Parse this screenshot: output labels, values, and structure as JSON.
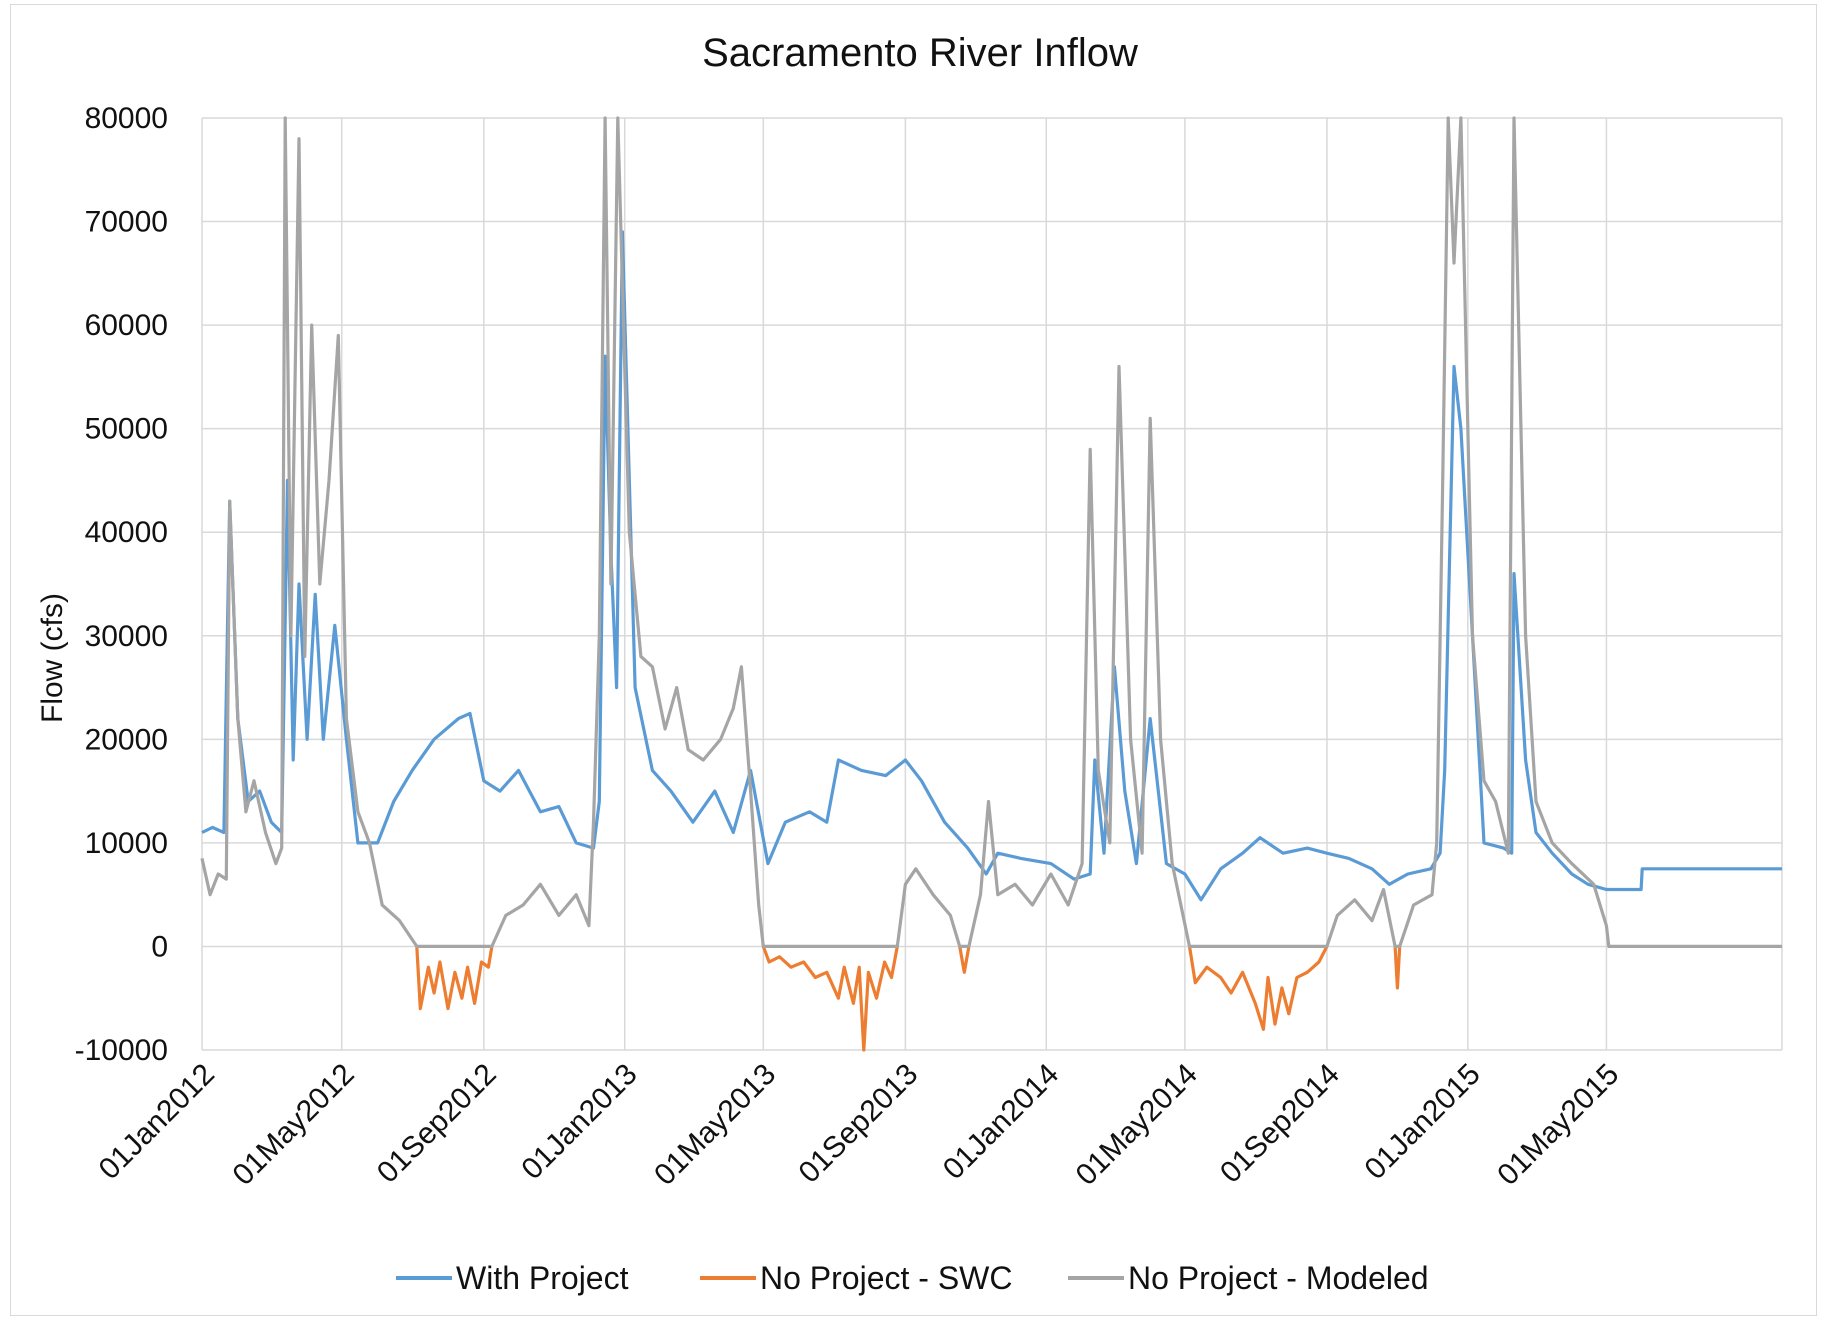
{
  "chart_data": {
    "type": "line",
    "title": "Sacramento River Inflow",
    "xlabel": "",
    "ylabel": "Flow (cfs)",
    "ylim": [
      -10000,
      80000
    ],
    "yticks": [
      "80000",
      "70000",
      "60000",
      "50000",
      "40000",
      "30000",
      "20000",
      "10000",
      "0",
      "-10000"
    ],
    "xlim": [
      "2012-01-01",
      "2015-09-30"
    ],
    "xticks": [
      "01Jan2012",
      "01May2012",
      "01Sep2012",
      "01Jan2013",
      "01May2013",
      "01Sep2013",
      "01Jan2014",
      "01May2014",
      "01Sep2014",
      "01Jan2015",
      "01May2015"
    ],
    "grid": true,
    "legend_position": "bottom",
    "series": [
      {
        "name": "With Project",
        "color": "#5b9bd5",
        "points": [
          [
            "2012-01-01",
            11000
          ],
          [
            "2012-01-10",
            11500
          ],
          [
            "2012-01-20",
            11000
          ],
          [
            "2012-01-25",
            43000
          ],
          [
            "2012-02-01",
            22000
          ],
          [
            "2012-02-10",
            14000
          ],
          [
            "2012-02-20",
            15000
          ],
          [
            "2012-03-01",
            12000
          ],
          [
            "2012-03-10",
            11000
          ],
          [
            "2012-03-15",
            45000
          ],
          [
            "2012-03-20",
            18000
          ],
          [
            "2012-03-25",
            35000
          ],
          [
            "2012-04-01",
            20000
          ],
          [
            "2012-04-08",
            34000
          ],
          [
            "2012-04-15",
            20000
          ],
          [
            "2012-04-25",
            31000
          ],
          [
            "2012-05-05",
            20000
          ],
          [
            "2012-05-15",
            10000
          ],
          [
            "2012-06-01",
            10000
          ],
          [
            "2012-06-15",
            14000
          ],
          [
            "2012-07-01",
            17000
          ],
          [
            "2012-07-20",
            20000
          ],
          [
            "2012-08-10",
            22000
          ],
          [
            "2012-08-20",
            22500
          ],
          [
            "2012-09-01",
            16000
          ],
          [
            "2012-09-15",
            15000
          ],
          [
            "2012-10-01",
            17000
          ],
          [
            "2012-10-20",
            13000
          ],
          [
            "2012-11-05",
            13500
          ],
          [
            "2012-11-20",
            10000
          ],
          [
            "2012-12-05",
            9500
          ],
          [
            "2012-12-10",
            14000
          ],
          [
            "2012-12-15",
            57000
          ],
          [
            "2012-12-20",
            38000
          ],
          [
            "2012-12-25",
            25000
          ],
          [
            "2012-12-30",
            69000
          ],
          [
            "2013-01-10",
            25000
          ],
          [
            "2013-01-25",
            17000
          ],
          [
            "2013-02-10",
            15000
          ],
          [
            "2013-03-01",
            12000
          ],
          [
            "2013-03-20",
            15000
          ],
          [
            "2013-04-05",
            11000
          ],
          [
            "2013-04-20",
            17000
          ],
          [
            "2013-05-05",
            8000
          ],
          [
            "2013-05-20",
            12000
          ],
          [
            "2013-06-10",
            13000
          ],
          [
            "2013-06-25",
            12000
          ],
          [
            "2013-07-05",
            18000
          ],
          [
            "2013-07-25",
            17000
          ],
          [
            "2013-08-15",
            16500
          ],
          [
            "2013-09-01",
            18000
          ],
          [
            "2013-09-15",
            16000
          ],
          [
            "2013-10-05",
            12000
          ],
          [
            "2013-10-25",
            9500
          ],
          [
            "2013-11-10",
            7000
          ],
          [
            "2013-11-20",
            9000
          ],
          [
            "2013-12-10",
            8500
          ],
          [
            "2014-01-05",
            8000
          ],
          [
            "2014-01-25",
            6500
          ],
          [
            "2014-02-08",
            7000
          ],
          [
            "2014-02-12",
            18000
          ],
          [
            "2014-02-20",
            9000
          ],
          [
            "2014-03-01",
            27000
          ],
          [
            "2014-03-10",
            15000
          ],
          [
            "2014-03-20",
            8000
          ],
          [
            "2014-04-01",
            22000
          ],
          [
            "2014-04-15",
            8000
          ],
          [
            "2014-05-01",
            7000
          ],
          [
            "2014-05-15",
            4500
          ],
          [
            "2014-06-01",
            7500
          ],
          [
            "2014-06-20",
            9000
          ],
          [
            "2014-07-05",
            10500
          ],
          [
            "2014-07-25",
            9000
          ],
          [
            "2014-08-15",
            9500
          ],
          [
            "2014-09-01",
            9000
          ],
          [
            "2014-09-20",
            8500
          ],
          [
            "2014-10-10",
            7500
          ],
          [
            "2014-10-25",
            6000
          ],
          [
            "2014-11-10",
            7000
          ],
          [
            "2014-11-30",
            7500
          ],
          [
            "2014-12-08",
            9000
          ],
          [
            "2014-12-12",
            17000
          ],
          [
            "2014-12-20",
            56000
          ],
          [
            "2014-12-26",
            50000
          ],
          [
            "2015-01-05",
            30000
          ],
          [
            "2015-01-15",
            10000
          ],
          [
            "2015-02-01",
            9500
          ],
          [
            "2015-02-08",
            9000
          ],
          [
            "2015-02-10",
            36000
          ],
          [
            "2015-02-20",
            18000
          ],
          [
            "2015-03-01",
            11000
          ],
          [
            "2015-03-15",
            9000
          ],
          [
            "2015-04-01",
            7000
          ],
          [
            "2015-04-15",
            6000
          ],
          [
            "2015-05-01",
            5500
          ],
          [
            "2015-05-31",
            5500
          ],
          [
            "2015-06-01",
            7500
          ],
          [
            "2015-09-30",
            7500
          ]
        ]
      },
      {
        "name": "No Project - SWC",
        "color": "#ed7d31",
        "points": [
          [
            "2012-07-05",
            0
          ],
          [
            "2012-07-08",
            -6000
          ],
          [
            "2012-07-15",
            -2000
          ],
          [
            "2012-07-20",
            -4500
          ],
          [
            "2012-07-25",
            -1500
          ],
          [
            "2012-08-01",
            -6000
          ],
          [
            "2012-08-07",
            -2500
          ],
          [
            "2012-08-13",
            -5000
          ],
          [
            "2012-08-18",
            -2000
          ],
          [
            "2012-08-24",
            -5500
          ],
          [
            "2012-08-30",
            -1500
          ],
          [
            "2012-09-05",
            -2000
          ],
          [
            "2012-09-08",
            0
          ],
          [
            "2013-05-01",
            0
          ],
          [
            "2013-05-06",
            -1500
          ],
          [
            "2013-05-15",
            -1000
          ],
          [
            "2013-05-25",
            -2000
          ],
          [
            "2013-06-05",
            -1500
          ],
          [
            "2013-06-15",
            -3000
          ],
          [
            "2013-06-25",
            -2500
          ],
          [
            "2013-07-05",
            -5000
          ],
          [
            "2013-07-10",
            -2000
          ],
          [
            "2013-07-18",
            -5500
          ],
          [
            "2013-07-23",
            -2000
          ],
          [
            "2013-07-27",
            -10000
          ],
          [
            "2013-07-31",
            -2500
          ],
          [
            "2013-08-07",
            -5000
          ],
          [
            "2013-08-14",
            -1500
          ],
          [
            "2013-08-20",
            -3000
          ],
          [
            "2013-08-25",
            0
          ],
          [
            "2013-10-18",
            0
          ],
          [
            "2013-10-22",
            -2500
          ],
          [
            "2013-10-26",
            0
          ],
          [
            "2014-05-05",
            0
          ],
          [
            "2014-05-10",
            -3500
          ],
          [
            "2014-05-20",
            -2000
          ],
          [
            "2014-06-01",
            -3000
          ],
          [
            "2014-06-10",
            -4500
          ],
          [
            "2014-06-20",
            -2500
          ],
          [
            "2014-07-01",
            -5500
          ],
          [
            "2014-07-08",
            -8000
          ],
          [
            "2014-07-12",
            -3000
          ],
          [
            "2014-07-18",
            -7500
          ],
          [
            "2014-07-24",
            -4000
          ],
          [
            "2014-07-30",
            -6500
          ],
          [
            "2014-08-06",
            -3000
          ],
          [
            "2014-08-15",
            -2500
          ],
          [
            "2014-08-25",
            -1500
          ],
          [
            "2014-09-01",
            0
          ],
          [
            "2014-10-30",
            0
          ],
          [
            "2014-11-01",
            -4000
          ],
          [
            "2014-11-03",
            0
          ]
        ]
      },
      {
        "name": "No Project - Modeled",
        "color": "#a5a5a5",
        "points": [
          [
            "2012-01-01",
            8500
          ],
          [
            "2012-01-08",
            5000
          ],
          [
            "2012-01-15",
            7000
          ],
          [
            "2012-01-22",
            6500
          ],
          [
            "2012-01-25",
            43000
          ],
          [
            "2012-02-01",
            22000
          ],
          [
            "2012-02-08",
            13000
          ],
          [
            "2012-02-15",
            16000
          ],
          [
            "2012-02-25",
            11000
          ],
          [
            "2012-03-05",
            8000
          ],
          [
            "2012-03-10",
            9500
          ],
          [
            "2012-03-13",
            80000
          ],
          [
            "2012-03-18",
            30000
          ],
          [
            "2012-03-25",
            78000
          ],
          [
            "2012-03-30",
            28000
          ],
          [
            "2012-04-05",
            60000
          ],
          [
            "2012-04-12",
            35000
          ],
          [
            "2012-04-20",
            45000
          ],
          [
            "2012-04-28",
            59000
          ],
          [
            "2012-05-05",
            22000
          ],
          [
            "2012-05-15",
            13000
          ],
          [
            "2012-05-25",
            10000
          ],
          [
            "2012-06-05",
            4000
          ],
          [
            "2012-06-20",
            2500
          ],
          [
            "2012-07-05",
            0
          ],
          [
            "2012-09-08",
            0
          ],
          [
            "2012-09-20",
            3000
          ],
          [
            "2012-10-05",
            4000
          ],
          [
            "2012-10-20",
            6000
          ],
          [
            "2012-11-05",
            3000
          ],
          [
            "2012-11-20",
            5000
          ],
          [
            "2012-12-01",
            2000
          ],
          [
            "2012-12-05",
            12000
          ],
          [
            "2012-12-10",
            30000
          ],
          [
            "2012-12-15",
            80000
          ],
          [
            "2012-12-20",
            35000
          ],
          [
            "2012-12-26",
            80000
          ],
          [
            "2013-01-05",
            40000
          ],
          [
            "2013-01-15",
            28000
          ],
          [
            "2013-01-25",
            27000
          ],
          [
            "2013-02-05",
            21000
          ],
          [
            "2013-02-15",
            25000
          ],
          [
            "2013-02-25",
            19000
          ],
          [
            "2013-03-10",
            18000
          ],
          [
            "2013-03-25",
            20000
          ],
          [
            "2013-04-05",
            23000
          ],
          [
            "2013-04-12",
            27000
          ],
          [
            "2013-04-20",
            15000
          ],
          [
            "2013-04-27",
            4000
          ],
          [
            "2013-05-01",
            0
          ],
          [
            "2013-08-25",
            0
          ],
          [
            "2013-09-01",
            6000
          ],
          [
            "2013-09-10",
            7500
          ],
          [
            "2013-09-25",
            5000
          ],
          [
            "2013-10-10",
            3000
          ],
          [
            "2013-10-18",
            0
          ],
          [
            "2013-10-26",
            0
          ],
          [
            "2013-11-05",
            5000
          ],
          [
            "2013-11-12",
            14000
          ],
          [
            "2013-11-20",
            5000
          ],
          [
            "2013-12-05",
            6000
          ],
          [
            "2013-12-20",
            4000
          ],
          [
            "2014-01-05",
            7000
          ],
          [
            "2014-01-20",
            4000
          ],
          [
            "2014-02-01",
            8000
          ],
          [
            "2014-02-08",
            48000
          ],
          [
            "2014-02-15",
            17000
          ],
          [
            "2014-02-25",
            10000
          ],
          [
            "2014-03-05",
            56000
          ],
          [
            "2014-03-15",
            20000
          ],
          [
            "2014-03-25",
            9000
          ],
          [
            "2014-04-01",
            51000
          ],
          [
            "2014-04-10",
            20000
          ],
          [
            "2014-04-20",
            8000
          ],
          [
            "2014-05-05",
            0
          ],
          [
            "2014-09-01",
            0
          ],
          [
            "2014-09-10",
            3000
          ],
          [
            "2014-09-25",
            4500
          ],
          [
            "2014-10-10",
            2500
          ],
          [
            "2014-10-20",
            5500
          ],
          [
            "2014-10-30",
            0
          ],
          [
            "2014-11-03",
            0
          ],
          [
            "2014-11-15",
            4000
          ],
          [
            "2014-12-01",
            5000
          ],
          [
            "2014-12-05",
            10000
          ],
          [
            "2014-12-10",
            43000
          ],
          [
            "2014-12-15",
            80000
          ],
          [
            "2014-12-20",
            66000
          ],
          [
            "2014-12-26",
            80000
          ],
          [
            "2015-01-05",
            30000
          ],
          [
            "2015-01-15",
            16000
          ],
          [
            "2015-01-25",
            14000
          ],
          [
            "2015-02-05",
            9000
          ],
          [
            "2015-02-10",
            80000
          ],
          [
            "2015-02-20",
            30000
          ],
          [
            "2015-03-01",
            14000
          ],
          [
            "2015-03-15",
            10000
          ],
          [
            "2015-04-01",
            8000
          ],
          [
            "2015-04-20",
            6000
          ],
          [
            "2015-05-01",
            2000
          ],
          [
            "2015-05-03",
            0
          ],
          [
            "2015-09-30",
            0
          ]
        ]
      }
    ]
  }
}
